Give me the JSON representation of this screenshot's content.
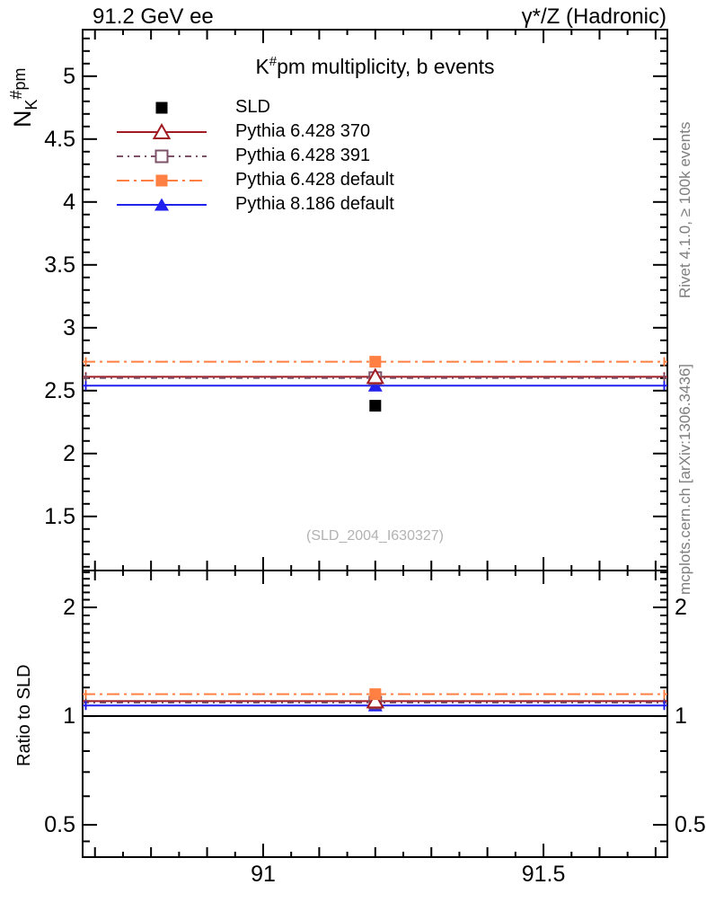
{
  "header": {
    "left": "91.2 GeV ee",
    "right": "γ*/Z (Hadronic)"
  },
  "title_parts": {
    "base": "K",
    "sup": "#",
    "rest": "pm multiplicity, b events"
  },
  "ylabel_parts": {
    "base": "N",
    "sub": "K",
    "sup": "#",
    "rest": "pm"
  },
  "ratio_label": "Ratio to SLD",
  "watermark": "(SLD_2004_I630327)",
  "side_texts": {
    "right_top": "Rivet 4.1.0, ≥ 100k events",
    "right_bottom": "mcplots.cern.ch [arXiv:1306.3436]"
  },
  "colors": {
    "frame": "#000000",
    "gray_text": "#7e7e7e",
    "watermark_gray": "#b2b2b2"
  },
  "chart_data": {
    "type": "line",
    "title": "K#pm multiplicity, b events",
    "x_axis": {
      "range": [
        90.678,
        91.721
      ],
      "major_ticks": [
        91,
        91.5
      ],
      "major_labels": [
        "91",
        "91.5"
      ],
      "medium_step": 0.1,
      "minor_step": 0.05
    },
    "main_panel": {
      "ylabel": "N_K#pm",
      "scale": "linear",
      "ylim": [
        1.07,
        5.37
      ],
      "major_ticks": [
        1.5,
        2,
        2.5,
        3,
        3.5,
        4,
        4.5,
        5
      ],
      "major_labels": [
        "1.5",
        "2",
        "2.5",
        "3",
        "3.5",
        "4",
        "4.5",
        "5"
      ],
      "minor_step": 0.1
    },
    "ratio_panel": {
      "ylabel": "Ratio to SLD",
      "scale": "log",
      "ylim": [
        0.407,
        2.53
      ],
      "major_ticks": [
        0.5,
        1,
        2
      ],
      "major_labels": [
        "0.5",
        "1",
        "2"
      ],
      "minor_ticks": [
        0.45,
        0.6,
        0.7,
        0.8,
        0.9,
        1.1,
        1.2,
        1.3,
        1.4,
        1.5,
        1.6,
        1.7,
        1.8,
        1.9,
        2.1,
        2.2,
        2.3,
        2.4,
        2.5
      ],
      "reference_line": 1.0
    },
    "point_x": 91.2,
    "reference_series": {
      "name": "SLD",
      "value": 2.38,
      "ratio": 1.0,
      "color": "#000000",
      "marker": "square-filled",
      "line": "none"
    },
    "series": [
      {
        "name": "Pythia 6.428 370",
        "value": 2.61,
        "ratio": 1.1,
        "color": "#a01b22",
        "line": "solid",
        "marker": "triangle-open"
      },
      {
        "name": "Pythia 6.428 391",
        "value": 2.6,
        "ratio": 1.09,
        "color": "#7d5268",
        "line": "dash-dot",
        "marker": "square-open"
      },
      {
        "name": "Pythia 6.428 default",
        "value": 2.73,
        "ratio": 1.15,
        "color": "#ff8042",
        "line": "dash-dot-long",
        "marker": "square-filled"
      },
      {
        "name": "Pythia 8.186 default",
        "value": 2.54,
        "ratio": 1.07,
        "color": "#2222ee",
        "line": "solid",
        "marker": "triangle-filled"
      }
    ]
  }
}
